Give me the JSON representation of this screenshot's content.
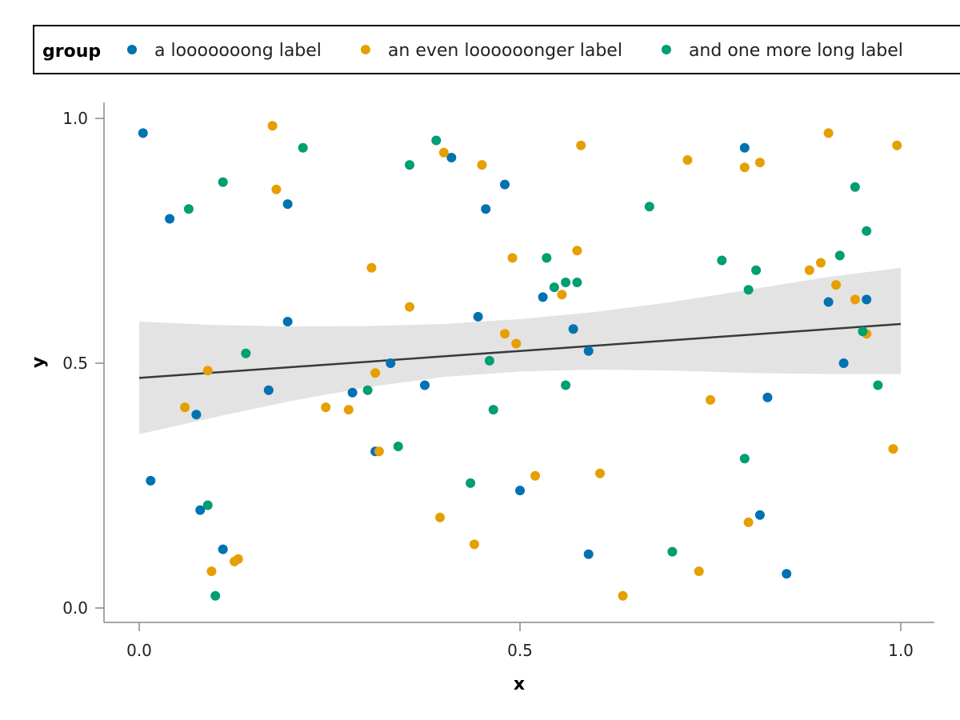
{
  "chart_data": {
    "type": "scatter",
    "xlabel": "x",
    "ylabel": "y",
    "xlim": [
      -0.09,
      1.09
    ],
    "ylim": [
      -0.03,
      1.03
    ],
    "x_ticks": [
      {
        "value": 0.0,
        "label": "0.0"
      },
      {
        "value": 0.5,
        "label": "0.5"
      },
      {
        "value": 1.0,
        "label": "1.0"
      }
    ],
    "y_ticks": [
      {
        "value": 0.0,
        "label": "0.0"
      },
      {
        "value": 0.5,
        "label": "0.5"
      },
      {
        "value": 1.0,
        "label": "1.0"
      }
    ],
    "grid": false,
    "legend": {
      "title": "group",
      "placement": "top",
      "entries": [
        {
          "label": "a looooooong label",
          "color": "#0072B2"
        },
        {
          "label": "an even loooooonger label",
          "color": "#E69F00"
        },
        {
          "label": "and one more long label",
          "color": "#009E73"
        }
      ]
    },
    "fit": {
      "color": "#3a3a3a",
      "band_color": "#e3e3e3",
      "x": [
        0.0,
        0.1,
        0.2,
        0.3,
        0.4,
        0.5,
        0.6,
        0.7,
        0.8,
        0.9,
        1.0
      ],
      "y": [
        0.47,
        0.481,
        0.492,
        0.503,
        0.514,
        0.525,
        0.536,
        0.547,
        0.558,
        0.569,
        0.58
      ],
      "lower": [
        0.355,
        0.39,
        0.423,
        0.451,
        0.472,
        0.483,
        0.487,
        0.485,
        0.48,
        0.478,
        0.478
      ],
      "upper": [
        0.585,
        0.578,
        0.575,
        0.576,
        0.58,
        0.59,
        0.605,
        0.625,
        0.65,
        0.675,
        0.695
      ]
    },
    "series": [
      {
        "name": "a looooooong label",
        "color": "#0072B2",
        "x": [
          0.005,
          0.015,
          0.04,
          0.075,
          0.195,
          0.28,
          0.31,
          0.33,
          0.17,
          0.41,
          0.48,
          0.455,
          0.375,
          0.53,
          0.445,
          0.59,
          0.57,
          0.795,
          0.815,
          0.85,
          0.925,
          0.905,
          0.08,
          0.11,
          0.5,
          0.59,
          0.825,
          0.955,
          0.195
        ],
        "y": [
          0.97,
          0.26,
          0.795,
          0.395,
          0.585,
          0.44,
          0.32,
          0.5,
          0.445,
          0.92,
          0.865,
          0.815,
          0.455,
          0.635,
          0.595,
          0.525,
          0.57,
          0.94,
          0.19,
          0.07,
          0.5,
          0.625,
          0.2,
          0.12,
          0.24,
          0.11,
          0.43,
          0.63,
          0.825
        ]
      },
      {
        "name": "an even loooooonger label",
        "color": "#E69F00",
        "x": [
          0.06,
          0.09,
          0.095,
          0.125,
          0.13,
          0.18,
          0.245,
          0.275,
          0.305,
          0.31,
          0.315,
          0.355,
          0.4,
          0.45,
          0.49,
          0.495,
          0.52,
          0.555,
          0.575,
          0.58,
          0.605,
          0.635,
          0.72,
          0.735,
          0.75,
          0.795,
          0.8,
          0.815,
          0.88,
          0.895,
          0.905,
          0.915,
          0.94,
          0.955,
          0.99,
          0.995,
          0.175,
          0.395,
          0.44,
          0.48
        ],
        "y": [
          0.41,
          0.485,
          0.075,
          0.095,
          0.1,
          0.855,
          0.41,
          0.405,
          0.695,
          0.48,
          0.32,
          0.615,
          0.93,
          0.905,
          0.715,
          0.54,
          0.27,
          0.64,
          0.73,
          0.945,
          0.275,
          0.025,
          0.915,
          0.075,
          0.425,
          0.9,
          0.175,
          0.91,
          0.69,
          0.705,
          0.97,
          0.66,
          0.63,
          0.56,
          0.325,
          0.945,
          0.985,
          0.185,
          0.13,
          0.56
        ]
      },
      {
        "name": "and one more long label",
        "color": "#009E73",
        "x": [
          0.065,
          0.09,
          0.1,
          0.11,
          0.14,
          0.215,
          0.3,
          0.34,
          0.355,
          0.39,
          0.435,
          0.46,
          0.465,
          0.535,
          0.545,
          0.56,
          0.575,
          0.67,
          0.7,
          0.765,
          0.795,
          0.8,
          0.81,
          0.92,
          0.94,
          0.95,
          0.955,
          0.97,
          0.56
        ],
        "y": [
          0.815,
          0.21,
          0.025,
          0.87,
          0.52,
          0.94,
          0.445,
          0.33,
          0.905,
          0.955,
          0.255,
          0.505,
          0.405,
          0.715,
          0.655,
          0.455,
          0.665,
          0.82,
          0.115,
          0.71,
          0.305,
          0.65,
          0.69,
          0.72,
          0.86,
          0.565,
          0.77,
          0.455,
          0.665
        ]
      }
    ]
  }
}
